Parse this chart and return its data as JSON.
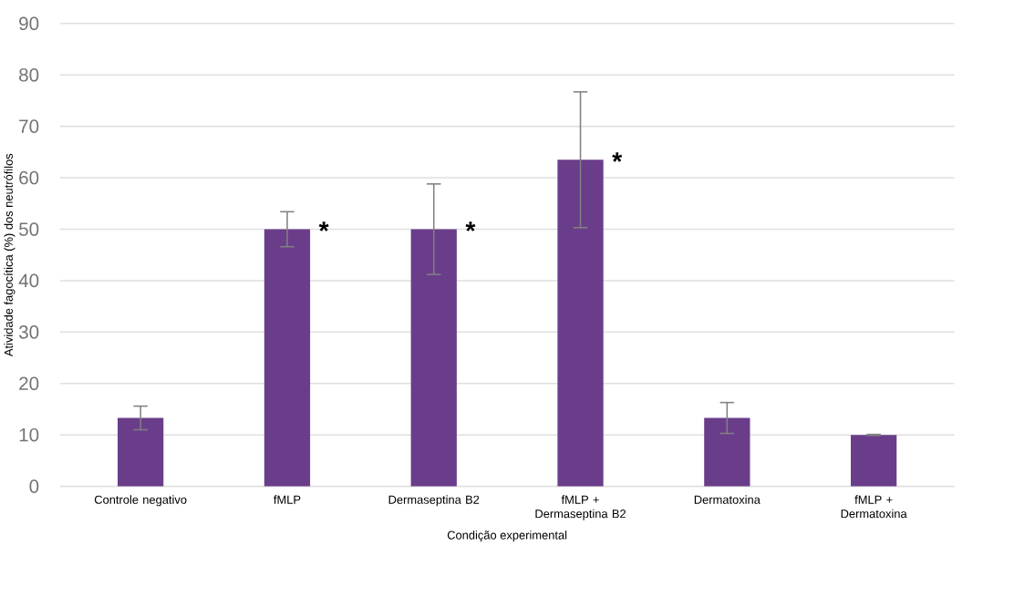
{
  "chart_data": {
    "type": "bar",
    "xlabel": "Condição experimental",
    "ylabel": "Atividade fagocítica (%) dos neutrófilos",
    "categories": [
      "Controle negativo",
      "fMLP",
      "Dermaseptina B2",
      "fMLP + Dermaseptina B2",
      "Dermatoxina",
      "fMLP + Dermatoxina"
    ],
    "values": [
      13.3,
      50,
      50,
      63.5,
      13.3,
      10
    ],
    "errors": [
      2.3,
      3.4,
      8.8,
      13.2,
      3.0,
      0.1
    ],
    "color": "#6a3d8a",
    "ylim": [
      0,
      90
    ],
    "yticks": [
      0,
      10,
      20,
      30,
      40,
      50,
      60,
      70,
      80,
      90
    ],
    "grid": "y",
    "annotations": [
      {
        "text": "*",
        "x": "fMLP",
        "y": 50
      },
      {
        "text": "*",
        "x": "Dermaseptina B2",
        "y": 50
      },
      {
        "text": "*",
        "x": "fMLP + Dermaseptina B2",
        "y": 63.5
      }
    ]
  }
}
